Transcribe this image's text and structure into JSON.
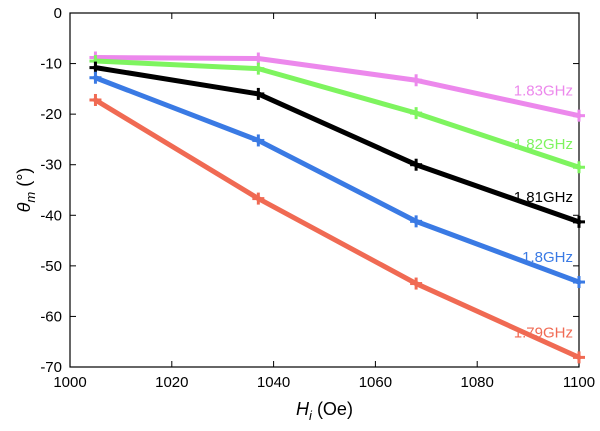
{
  "chart_data": {
    "type": "line",
    "xlabel": {
      "main": "H",
      "sub": "i",
      "rest": " (Oe)"
    },
    "ylabel": {
      "main": "θ",
      "sub": "m",
      "rest": " (°)"
    },
    "xlim": [
      1000,
      1100
    ],
    "ylim": [
      -70,
      0
    ],
    "xticks": [
      1000,
      1020,
      1040,
      1060,
      1080,
      1100
    ],
    "yticks": [
      0,
      -10,
      -20,
      -30,
      -40,
      -50,
      -60,
      -70
    ],
    "x": [
      1005,
      1037,
      1068,
      1100
    ],
    "series": [
      {
        "name": "1.83GHz",
        "color": "#ec88ec",
        "values": [
          -8.8,
          -9.0,
          -13.3,
          -20.3
        ]
      },
      {
        "name": "1.82GHz",
        "color": "#7ef45f",
        "values": [
          -9.5,
          -11.0,
          -19.8,
          -30.5
        ]
      },
      {
        "name": "1.81GHz",
        "color": "#000000",
        "values": [
          -10.8,
          -16.0,
          -30.0,
          -41.3
        ]
      },
      {
        "name": "1.8GHz",
        "color": "#3a7ae4",
        "values": [
          -12.8,
          -25.2,
          -41.2,
          -53.2
        ]
      },
      {
        "name": "1.79GHz",
        "color": "#f06a53",
        "values": [
          -17.2,
          -36.7,
          -53.5,
          -68.1
        ]
      }
    ],
    "grid": false,
    "legend": "inline labels near line ends"
  }
}
